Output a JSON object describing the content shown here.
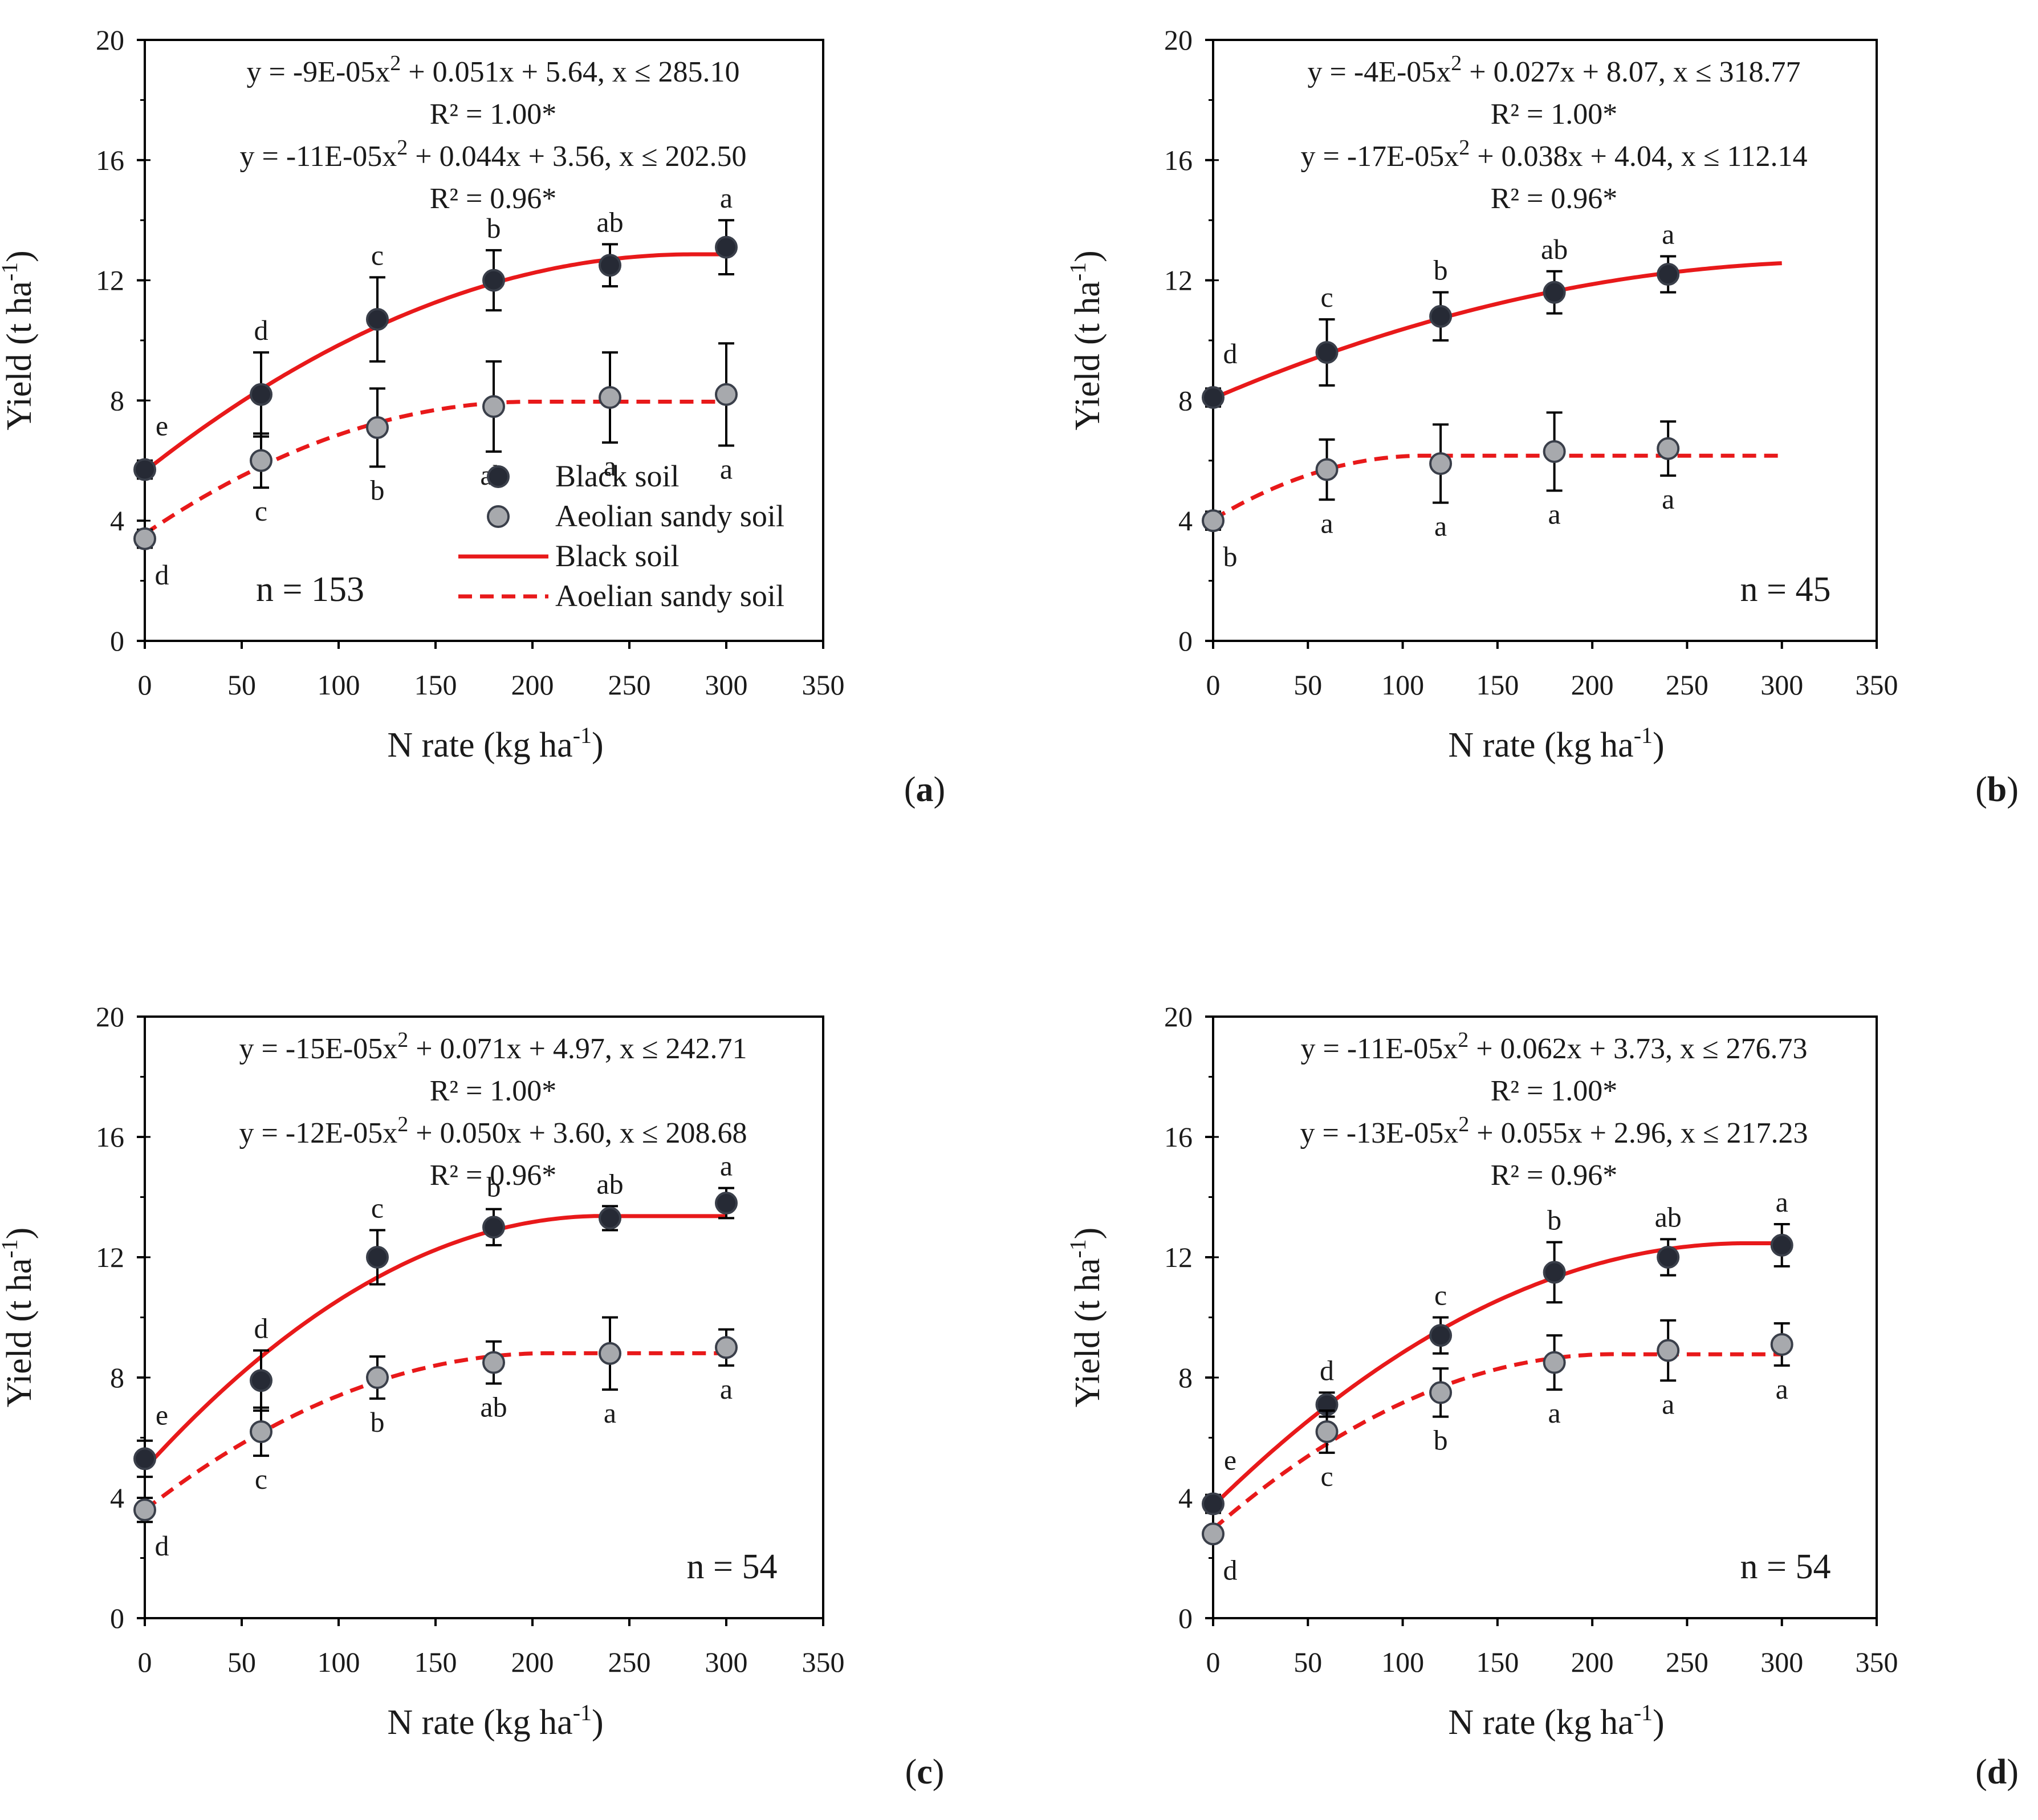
{
  "figure": {
    "panel_letters": [
      "a",
      "b",
      "c",
      "d"
    ]
  },
  "colors": {
    "black_soil_marker": "#262a35",
    "sandy_soil_marker": "#a7a9ad",
    "fit_line": "#e8191a",
    "axis": "#000000"
  },
  "legend": {
    "entries": [
      "Black soil",
      "Aeolian sandy soil",
      "Black soil",
      "Aoelian sandy soil"
    ]
  },
  "chart_data": [
    {
      "type": "scatter",
      "panel": "a",
      "xlabel_main": "N rate (kg ha",
      "xlabel_sup": "-1",
      "xlabel_end": ")",
      "ylabel_main": "Yield (t ha",
      "ylabel_sup": "-1",
      "ylabel_end": ")",
      "xlim": [
        0,
        350
      ],
      "ylim": [
        0,
        20
      ],
      "xticks": [
        "0",
        "50",
        "100",
        "150",
        "200",
        "250",
        "300",
        "350"
      ],
      "yticks": [
        "0",
        "4",
        "8",
        "12",
        "16",
        "20"
      ],
      "x": [
        0,
        60,
        120,
        180,
        240,
        300
      ],
      "n_label": "n = 153",
      "show_legend": true,
      "equations": [
        {
          "pre": "y = -9E-05x",
          "sup": "2",
          "post": " + 0.051x + 5.64, x ≤ 285.10"
        },
        {
          "pre": "R² = 1.00*",
          "sup": "",
          "post": ""
        },
        {
          "pre": "y = -11E-05x",
          "sup": "2",
          "post": " + 0.044x + 3.56, x ≤ 202.50"
        },
        {
          "pre": "R² = 0.96*",
          "sup": "",
          "post": ""
        }
      ],
      "series": [
        {
          "name": "Black soil",
          "values": [
            5.7,
            8.2,
            10.7,
            12.0,
            12.5,
            13.1
          ],
          "errors": [
            0.3,
            1.4,
            1.4,
            1.0,
            0.7,
            0.9
          ],
          "letters": [
            "e",
            "d",
            "c",
            "b",
            "ab",
            "a"
          ],
          "fit": {
            "a": -9e-05,
            "b": 0.051,
            "c": 5.64,
            "xmax": 285.1,
            "x_end": 300
          }
        },
        {
          "name": "Aeolian sandy soil",
          "values": [
            3.4,
            6.0,
            7.1,
            7.8,
            8.1,
            8.2
          ],
          "errors": [
            0.3,
            0.9,
            1.3,
            1.5,
            1.5,
            1.7
          ],
          "letters": [
            "d",
            "c",
            "b",
            "ab",
            "a",
            "a"
          ],
          "fit": {
            "a": -0.00011,
            "b": 0.044,
            "c": 3.56,
            "xmax": 202.5,
            "x_end": 300
          }
        }
      ]
    },
    {
      "type": "scatter",
      "panel": "b",
      "xlabel_main": "N rate (kg ha",
      "xlabel_sup": "-1",
      "xlabel_end": ")",
      "ylabel_main": "Yield (t ha",
      "ylabel_sup": "-1",
      "ylabel_end": ")",
      "xlim": [
        0,
        350
      ],
      "ylim": [
        0,
        20
      ],
      "xticks": [
        "0",
        "50",
        "100",
        "150",
        "200",
        "250",
        "300",
        "350"
      ],
      "yticks": [
        "0",
        "4",
        "8",
        "12",
        "16",
        "20"
      ],
      "x": [
        0,
        60,
        120,
        180,
        240
      ],
      "n_label": "n = 45",
      "show_legend": false,
      "equations": [
        {
          "pre": "y = -4E-05x",
          "sup": "2",
          "post": " + 0.027x + 8.07, x ≤ 318.77"
        },
        {
          "pre": "R² = 1.00*",
          "sup": "",
          "post": ""
        },
        {
          "pre": "y = -17E-05x",
          "sup": "2",
          "post": " + 0.038x + 4.04, x ≤ 112.14"
        },
        {
          "pre": "R² = 0.96*",
          "sup": "",
          "post": ""
        }
      ],
      "series": [
        {
          "name": "Black soil",
          "values": [
            8.1,
            9.6,
            10.8,
            11.6,
            12.2
          ],
          "errors": [
            0.3,
            1.1,
            0.8,
            0.7,
            0.6
          ],
          "letters": [
            "d",
            "c",
            "b",
            "ab",
            "a"
          ],
          "fit": {
            "a": -4e-05,
            "b": 0.027,
            "c": 8.07,
            "xmax": 318.77,
            "x_end": 300
          }
        },
        {
          "name": "Aeolian sandy soil",
          "values": [
            4.0,
            5.7,
            5.9,
            6.3,
            6.4
          ],
          "errors": [
            0.3,
            1.0,
            1.3,
            1.3,
            0.9
          ],
          "letters": [
            "b",
            "a",
            "a",
            "a",
            "a"
          ],
          "fit": {
            "a": -0.00017,
            "b": 0.038,
            "c": 4.04,
            "xmax": 112.14,
            "x_end": 300
          }
        }
      ]
    },
    {
      "type": "scatter",
      "panel": "c",
      "xlabel_main": "N rate (kg ha",
      "xlabel_sup": "-1",
      "xlabel_end": ")",
      "ylabel_main": "Yield (t ha",
      "ylabel_sup": "-1",
      "ylabel_end": ")",
      "xlim": [
        0,
        350
      ],
      "ylim": [
        0,
        20
      ],
      "xticks": [
        "0",
        "50",
        "100",
        "150",
        "200",
        "250",
        "300",
        "350"
      ],
      "yticks": [
        "0",
        "4",
        "8",
        "12",
        "16",
        "20"
      ],
      "x": [
        0,
        60,
        120,
        180,
        240,
        300
      ],
      "n_label": "n = 54",
      "show_legend": false,
      "equations": [
        {
          "pre": "y = -15E-05x",
          "sup": "2",
          "post": " + 0.071x + 4.97, x ≤ 242.71"
        },
        {
          "pre": "R² = 1.00*",
          "sup": "",
          "post": ""
        },
        {
          "pre": "y = -12E-05x",
          "sup": "2",
          "post": " + 0.050x + 3.60, x ≤ 208.68"
        },
        {
          "pre": "R² = 0.96*",
          "sup": "",
          "post": ""
        }
      ],
      "series": [
        {
          "name": "Black soil",
          "values": [
            5.3,
            7.9,
            12.0,
            13.0,
            13.3,
            13.8
          ],
          "errors": [
            0.6,
            1.0,
            0.9,
            0.6,
            0.4,
            0.5
          ],
          "letters": [
            "e",
            "d",
            "c",
            "b",
            "ab",
            "a"
          ],
          "fit": {
            "a": -0.00015,
            "b": 0.071,
            "c": 4.97,
            "xmax": 242.71,
            "x_end": 300
          }
        },
        {
          "name": "Aeolian sandy soil",
          "values": [
            3.6,
            6.2,
            8.0,
            8.5,
            8.8,
            9.0
          ],
          "errors": [
            0.4,
            0.8,
            0.7,
            0.7,
            1.2,
            0.6
          ],
          "letters": [
            "d",
            "c",
            "b",
            "ab",
            "a",
            "a"
          ],
          "fit": {
            "a": -0.00012,
            "b": 0.05,
            "c": 3.6,
            "xmax": 208.68,
            "x_end": 300
          }
        }
      ]
    },
    {
      "type": "scatter",
      "panel": "d",
      "xlabel_main": "N rate (kg ha",
      "xlabel_sup": "-1",
      "xlabel_end": ")",
      "ylabel_main": "Yield (t ha",
      "ylabel_sup": "-1",
      "ylabel_end": ")",
      "xlim": [
        0,
        350
      ],
      "ylim": [
        0,
        20
      ],
      "xticks": [
        "0",
        "50",
        "100",
        "150",
        "200",
        "250",
        "300",
        "350"
      ],
      "yticks": [
        "0",
        "4",
        "8",
        "12",
        "16",
        "20"
      ],
      "x": [
        0,
        60,
        120,
        180,
        240,
        300
      ],
      "n_label": "n = 54",
      "show_legend": false,
      "equations": [
        {
          "pre": "y = -11E-05x",
          "sup": "2",
          "post": " + 0.062x + 3.73, x ≤ 276.73"
        },
        {
          "pre": "R² = 1.00*",
          "sup": "",
          "post": ""
        },
        {
          "pre": "y = -13E-05x",
          "sup": "2",
          "post": " + 0.055x + 2.96, x ≤ 217.23"
        },
        {
          "pre": "R² = 0.96*",
          "sup": "",
          "post": ""
        }
      ],
      "series": [
        {
          "name": "Black soil",
          "values": [
            3.8,
            7.1,
            9.4,
            11.5,
            12.0,
            12.4
          ],
          "errors": [
            0.3,
            0.4,
            0.6,
            1.0,
            0.6,
            0.7
          ],
          "letters": [
            "e",
            "d",
            "c",
            "b",
            "ab",
            "a"
          ],
          "fit": {
            "a": -0.00011,
            "b": 0.062,
            "c": 3.73,
            "xmax": 276.73,
            "x_end": 300
          }
        },
        {
          "name": "Aeolian sandy soil",
          "values": [
            2.8,
            6.2,
            7.5,
            8.5,
            8.9,
            9.1
          ],
          "errors": [
            0.2,
            0.7,
            0.8,
            0.9,
            1.0,
            0.7
          ],
          "letters": [
            "d",
            "c",
            "b",
            "a",
            "a",
            "a"
          ],
          "fit": {
            "a": -0.00013,
            "b": 0.055,
            "c": 2.96,
            "xmax": 217.23,
            "x_end": 300
          }
        }
      ]
    }
  ]
}
